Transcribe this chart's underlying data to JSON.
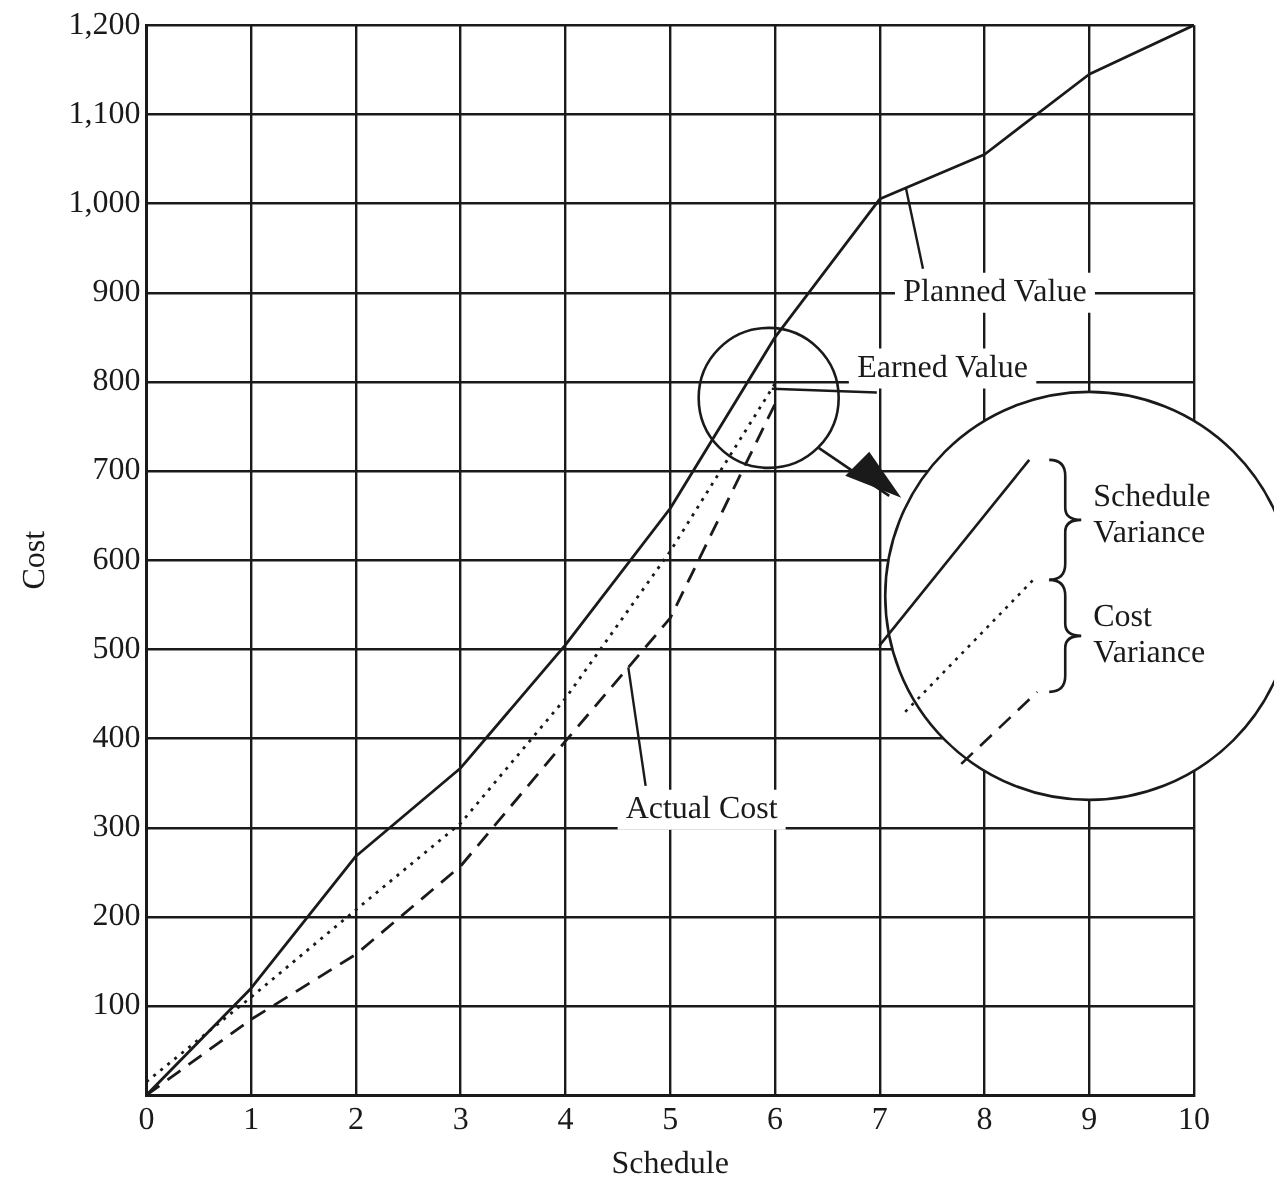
{
  "chart_data": {
    "type": "line",
    "xlabel": "Schedule",
    "ylabel": "Cost",
    "x": [
      0,
      1,
      2,
      3,
      4,
      5,
      6,
      7,
      8,
      9,
      10
    ],
    "xlim": [
      0,
      10
    ],
    "xticks": [
      0,
      1,
      2,
      3,
      4,
      5,
      6,
      7,
      8,
      9,
      10
    ],
    "ylim": [
      0,
      1200
    ],
    "yticks": [
      100,
      200,
      300,
      400,
      500,
      600,
      700,
      800,
      900,
      {
        "value": 1000,
        "label": "1,000"
      },
      {
        "value": 1100,
        "label": "1,100"
      },
      {
        "value": 1200,
        "label": "1,200"
      }
    ],
    "grid": true,
    "legend": false,
    "marker": "none",
    "series": [
      {
        "name": "Planned Value",
        "color": "#1a1a1a",
        "line_style": "solid",
        "values": [
          0,
          120,
          268,
          367,
          505,
          658,
          850,
          1005,
          1055,
          1145,
          1200
        ]
      },
      {
        "name": "Earned Value",
        "color": "#1a1a1a",
        "line_style": "dotted",
        "values": [
          15,
          110,
          208,
          305,
          445,
          610,
          798,
          null,
          null,
          null,
          null
        ]
      },
      {
        "name": "Actual Cost",
        "color": "#1a1a1a",
        "line_style": "dashed",
        "values": [
          0,
          85,
          158,
          257,
          397,
          535,
          775,
          null,
          null,
          null,
          null
        ]
      }
    ],
    "annotations": [
      "Schedule Variance",
      "Cost Variance"
    ]
  }
}
